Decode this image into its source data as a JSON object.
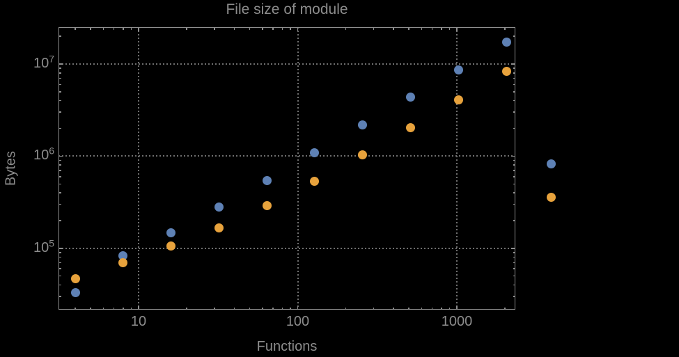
{
  "chart_data": {
    "type": "scatter",
    "title": "File size of module",
    "xlabel": "Functions",
    "ylabel": "Bytes",
    "x_scale": "log",
    "y_scale": "log",
    "x_range_approx": [
      3.2,
      2350
    ],
    "y_range_approx": [
      21000,
      27000000
    ],
    "grid": "dotted gray lines at decade ticks, frame on all four sides with inward ticks",
    "legend_position": "none (two unlabeled markers right of frame)",
    "x_major_ticks": [
      {
        "value": 10,
        "label": "10"
      },
      {
        "value": 100,
        "label": "100"
      },
      {
        "value": 1000,
        "label": "1000"
      }
    ],
    "y_major_ticks": [
      {
        "value": 100000,
        "base": "10",
        "exp": "5"
      },
      {
        "value": 1000000,
        "base": "10",
        "exp": "6"
      },
      {
        "value": 10000000,
        "base": "10",
        "exp": "7"
      }
    ],
    "x_minor_ticks": [
      4,
      5,
      6,
      7,
      8,
      9,
      20,
      30,
      40,
      50,
      60,
      70,
      80,
      90,
      200,
      300,
      400,
      500,
      600,
      700,
      800,
      900,
      2000
    ],
    "y_minor_ticks": [
      30000,
      40000,
      50000,
      60000,
      70000,
      80000,
      90000,
      200000,
      300000,
      400000,
      500000,
      600000,
      700000,
      800000,
      900000,
      2000000,
      3000000,
      4000000,
      5000000,
      6000000,
      7000000,
      8000000,
      9000000,
      20000000
    ],
    "series": [
      {
        "name": "series-blue",
        "color": "#5E81B5",
        "points": [
          {
            "x": 4,
            "y": 33000
          },
          {
            "x": 8,
            "y": 83000
          },
          {
            "x": 16,
            "y": 148000
          },
          {
            "x": 32,
            "y": 280000
          },
          {
            "x": 64,
            "y": 545000
          },
          {
            "x": 128,
            "y": 1090000
          },
          {
            "x": 256,
            "y": 2200000
          },
          {
            "x": 512,
            "y": 4400000
          },
          {
            "x": 1024,
            "y": 8700000
          },
          {
            "x": 2048,
            "y": 17200000
          }
        ]
      },
      {
        "name": "series-orange",
        "color": "#E7A23C",
        "points": [
          {
            "x": 4,
            "y": 47000
          },
          {
            "x": 8,
            "y": 70000
          },
          {
            "x": 16,
            "y": 105000
          },
          {
            "x": 32,
            "y": 167000
          },
          {
            "x": 64,
            "y": 290000
          },
          {
            "x": 128,
            "y": 535000
          },
          {
            "x": 256,
            "y": 1040000
          },
          {
            "x": 512,
            "y": 2050000
          },
          {
            "x": 1024,
            "y": 4050000
          },
          {
            "x": 2048,
            "y": 8300000
          }
        ]
      }
    ],
    "outside_points": [
      {
        "series": "series-blue",
        "color": "#5E81B5",
        "x": 3900,
        "y": 825000
      },
      {
        "series": "series-orange",
        "color": "#E7A23C",
        "x": 3900,
        "y": 357000
      }
    ]
  },
  "colors": {
    "background": "#000000",
    "frame": "#8f8f8f",
    "tick": "#8f8f8f",
    "grid": "#6f6f6f",
    "text": "#8c8c8c",
    "series_blue": "#5E81B5",
    "series_orange": "#E7A23C"
  }
}
